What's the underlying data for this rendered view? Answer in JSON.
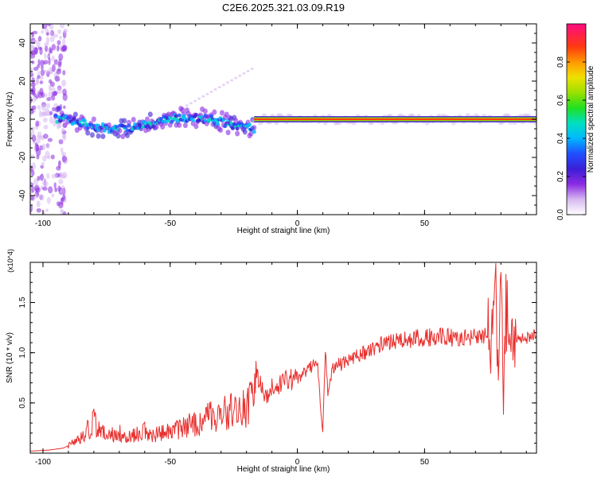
{
  "title": "C2E6.2025.321.03.09.R19",
  "chart_data": [
    {
      "type": "heatmap",
      "title": "C2E6.2025.321.03.09.R19",
      "xlabel": "Height of straight line (km)",
      "ylabel": "Frequency (Hz)",
      "xlim": [
        -105,
        94
      ],
      "ylim": [
        -50,
        50
      ],
      "xticks": [
        -100,
        -50,
        0,
        50
      ],
      "yticks": [
        -40,
        -20,
        0,
        20,
        40
      ],
      "colorbar": {
        "label": "Normalized spectral amplitude",
        "range": [
          0,
          1
        ],
        "ticks": [
          0.0,
          0.2,
          0.4,
          0.6,
          0.8
        ],
        "tick_labels": [
          "0.0",
          "0.2",
          "0.4",
          "0.6",
          "0.8"
        ]
      },
      "description": "Spectrogram: scattered broadband noise for heights below -90 km, a wavering ~0 Hz band from -95 to -17 km, and a strong flat 0 Hz line from -17 to 94 km."
    },
    {
      "type": "line",
      "xlabel": "Height of straight line (km)",
      "ylabel": "SNR (10 * v/v)",
      "multiplier_label": "(x10^4)",
      "xlim": [
        -105,
        94
      ],
      "ylim": [
        0,
        1.9
      ],
      "xticks": [
        -100,
        -50,
        0,
        50
      ],
      "yticks": [
        0.5,
        1.0,
        1.5
      ],
      "ytick_labels": [
        "0.5",
        "1.0",
        "1.5"
      ],
      "color": "#e8302e",
      "series": [
        {
          "name": "SNR",
          "x": [
            -105,
            -98,
            -92,
            -88,
            -84,
            -82,
            -80,
            -78,
            -75,
            -70,
            -65,
            -60,
            -55,
            -50,
            -45,
            -40,
            -35,
            -30,
            -25,
            -20,
            -17,
            -15,
            -12,
            -10,
            -5,
            0,
            4,
            6,
            8,
            9,
            10,
            11,
            12,
            14,
            18,
            22,
            26,
            30,
            35,
            40,
            45,
            50,
            55,
            60,
            65,
            70,
            74,
            76,
            78,
            79,
            80,
            81,
            82,
            84,
            86,
            90,
            94
          ],
          "y": [
            0.02,
            0.03,
            0.05,
            0.1,
            0.16,
            0.25,
            0.32,
            0.22,
            0.18,
            0.2,
            0.17,
            0.22,
            0.18,
            0.22,
            0.25,
            0.3,
            0.35,
            0.4,
            0.42,
            0.45,
            0.6,
            0.7,
            0.55,
            0.65,
            0.72,
            0.75,
            0.82,
            0.88,
            0.9,
            0.5,
            0.2,
            1.05,
            0.6,
            0.85,
            0.9,
            0.95,
            1.0,
            1.05,
            1.1,
            1.12,
            1.14,
            1.15,
            1.16,
            1.15,
            1.14,
            1.16,
            1.18,
            1.2,
            1.5,
            0.6,
            1.85,
            0.4,
            1.4,
            1.1,
            1.12,
            1.15,
            1.18
          ]
        }
      ]
    }
  ]
}
